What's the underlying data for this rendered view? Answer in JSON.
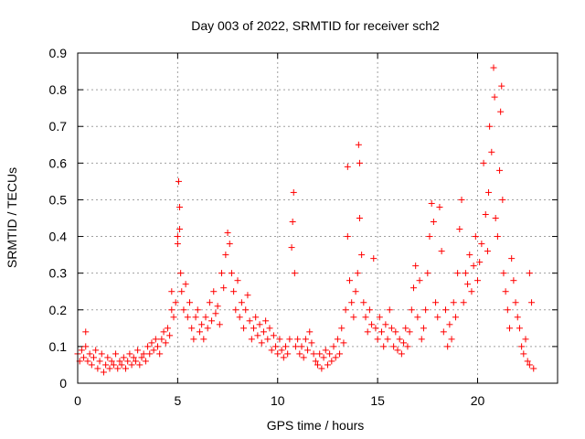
{
  "chart_data": {
    "type": "scatter",
    "title": "Day 003 of 2022, SRMTID for receiver sch2",
    "xlabel": "GPS time / hours",
    "ylabel": "SRMTID / TECUs",
    "xlim": [
      0,
      24
    ],
    "ylim": [
      0,
      0.9
    ],
    "xticks": [
      0,
      5,
      10,
      15,
      20
    ],
    "yticks": [
      0,
      0.1,
      0.2,
      0.3,
      0.4,
      0.5,
      0.6,
      0.7,
      0.8,
      0.9
    ],
    "xtick_labels": [
      "0",
      "5",
      "10",
      "15",
      "20"
    ],
    "ytick_labels": [
      "0",
      "0.1",
      "0.2",
      "0.3",
      "0.4",
      "0.5",
      "0.6",
      "0.7",
      "0.8",
      "0.9"
    ],
    "grid": true,
    "marker": "plus",
    "color": "#ff0000",
    "series": [
      {
        "name": "sch2",
        "points": [
          [
            0.0,
            0.08
          ],
          [
            0.1,
            0.06
          ],
          [
            0.2,
            0.09
          ],
          [
            0.3,
            0.07
          ],
          [
            0.4,
            0.1
          ],
          [
            0.4,
            0.14
          ],
          [
            0.5,
            0.06
          ],
          [
            0.6,
            0.08
          ],
          [
            0.7,
            0.05
          ],
          [
            0.8,
            0.07
          ],
          [
            0.9,
            0.09
          ],
          [
            1.0,
            0.04
          ],
          [
            1.1,
            0.06
          ],
          [
            1.2,
            0.08
          ],
          [
            1.3,
            0.03
          ],
          [
            1.4,
            0.05
          ],
          [
            1.5,
            0.07
          ],
          [
            1.6,
            0.04
          ],
          [
            1.7,
            0.06
          ],
          [
            1.8,
            0.05
          ],
          [
            1.9,
            0.08
          ],
          [
            2.0,
            0.04
          ],
          [
            2.1,
            0.06
          ],
          [
            2.2,
            0.05
          ],
          [
            2.3,
            0.07
          ],
          [
            2.4,
            0.04
          ],
          [
            2.5,
            0.06
          ],
          [
            2.6,
            0.08
          ],
          [
            2.7,
            0.05
          ],
          [
            2.8,
            0.07
          ],
          [
            2.9,
            0.06
          ],
          [
            3.0,
            0.09
          ],
          [
            3.1,
            0.05
          ],
          [
            3.2,
            0.07
          ],
          [
            3.3,
            0.08
          ],
          [
            3.4,
            0.06
          ],
          [
            3.5,
            0.1
          ],
          [
            3.6,
            0.08
          ],
          [
            3.7,
            0.11
          ],
          [
            3.8,
            0.09
          ],
          [
            3.9,
            0.12
          ],
          [
            4.0,
            0.1
          ],
          [
            4.1,
            0.08
          ],
          [
            4.2,
            0.12
          ],
          [
            4.3,
            0.14
          ],
          [
            4.4,
            0.11
          ],
          [
            4.5,
            0.15
          ],
          [
            4.6,
            0.13
          ],
          [
            4.7,
            0.2
          ],
          [
            4.7,
            0.25
          ],
          [
            4.8,
            0.18
          ],
          [
            4.9,
            0.22
          ],
          [
            5.0,
            0.4
          ],
          [
            5.0,
            0.38
          ],
          [
            5.05,
            0.55
          ],
          [
            5.1,
            0.48
          ],
          [
            5.1,
            0.42
          ],
          [
            5.15,
            0.3
          ],
          [
            5.2,
            0.25
          ],
          [
            5.3,
            0.2
          ],
          [
            5.4,
            0.27
          ],
          [
            5.5,
            0.18
          ],
          [
            5.6,
            0.22
          ],
          [
            5.7,
            0.15
          ],
          [
            5.8,
            0.12
          ],
          [
            5.9,
            0.18
          ],
          [
            6.0,
            0.2
          ],
          [
            6.1,
            0.14
          ],
          [
            6.2,
            0.16
          ],
          [
            6.3,
            0.12
          ],
          [
            6.4,
            0.18
          ],
          [
            6.5,
            0.15
          ],
          [
            6.6,
            0.22
          ],
          [
            6.7,
            0.17
          ],
          [
            6.8,
            0.25
          ],
          [
            6.9,
            0.19
          ],
          [
            7.0,
            0.21
          ],
          [
            7.1,
            0.16
          ],
          [
            7.2,
            0.3
          ],
          [
            7.3,
            0.26
          ],
          [
            7.4,
            0.35
          ],
          [
            7.5,
            0.41
          ],
          [
            7.6,
            0.38
          ],
          [
            7.7,
            0.3
          ],
          [
            7.8,
            0.25
          ],
          [
            7.9,
            0.2
          ],
          [
            8.0,
            0.28
          ],
          [
            8.1,
            0.18
          ],
          [
            8.2,
            0.22
          ],
          [
            8.3,
            0.15
          ],
          [
            8.4,
            0.2
          ],
          [
            8.5,
            0.24
          ],
          [
            8.6,
            0.17
          ],
          [
            8.7,
            0.12
          ],
          [
            8.8,
            0.15
          ],
          [
            8.9,
            0.18
          ],
          [
            9.0,
            0.13
          ],
          [
            9.1,
            0.16
          ],
          [
            9.2,
            0.11
          ],
          [
            9.3,
            0.14
          ],
          [
            9.4,
            0.17
          ],
          [
            9.5,
            0.12
          ],
          [
            9.6,
            0.15
          ],
          [
            9.7,
            0.09
          ],
          [
            9.8,
            0.13
          ],
          [
            9.9,
            0.1
          ],
          [
            10.0,
            0.08
          ],
          [
            10.1,
            0.12
          ],
          [
            10.2,
            0.09
          ],
          [
            10.3,
            0.07
          ],
          [
            10.4,
            0.1
          ],
          [
            10.5,
            0.08
          ],
          [
            10.6,
            0.12
          ],
          [
            10.7,
            0.37
          ],
          [
            10.75,
            0.44
          ],
          [
            10.8,
            0.52
          ],
          [
            10.85,
            0.3
          ],
          [
            10.9,
            0.1
          ],
          [
            11.0,
            0.12
          ],
          [
            11.1,
            0.08
          ],
          [
            11.2,
            0.1
          ],
          [
            11.3,
            0.07
          ],
          [
            11.4,
            0.12
          ],
          [
            11.5,
            0.09
          ],
          [
            11.6,
            0.14
          ],
          [
            11.7,
            0.11
          ],
          [
            11.8,
            0.08
          ],
          [
            11.9,
            0.06
          ],
          [
            12.0,
            0.05
          ],
          [
            12.1,
            0.08
          ],
          [
            12.2,
            0.04
          ],
          [
            12.3,
            0.07
          ],
          [
            12.4,
            0.09
          ],
          [
            12.5,
            0.05
          ],
          [
            12.6,
            0.08
          ],
          [
            12.7,
            0.06
          ],
          [
            12.8,
            0.1
          ],
          [
            12.9,
            0.07
          ],
          [
            13.0,
            0.12
          ],
          [
            13.1,
            0.08
          ],
          [
            13.2,
            0.15
          ],
          [
            13.3,
            0.11
          ],
          [
            13.4,
            0.2
          ],
          [
            13.5,
            0.59
          ],
          [
            13.5,
            0.4
          ],
          [
            13.6,
            0.28
          ],
          [
            13.7,
            0.22
          ],
          [
            13.8,
            0.18
          ],
          [
            13.9,
            0.25
          ],
          [
            14.0,
            0.3
          ],
          [
            14.05,
            0.65
          ],
          [
            14.1,
            0.6
          ],
          [
            14.1,
            0.45
          ],
          [
            14.2,
            0.35
          ],
          [
            14.3,
            0.22
          ],
          [
            14.4,
            0.18
          ],
          [
            14.5,
            0.14
          ],
          [
            14.6,
            0.2
          ],
          [
            14.7,
            0.16
          ],
          [
            14.8,
            0.34
          ],
          [
            14.9,
            0.15
          ],
          [
            15.0,
            0.12
          ],
          [
            15.1,
            0.18
          ],
          [
            15.2,
            0.14
          ],
          [
            15.3,
            0.1
          ],
          [
            15.4,
            0.16
          ],
          [
            15.5,
            0.12
          ],
          [
            15.6,
            0.2
          ],
          [
            15.7,
            0.15
          ],
          [
            15.8,
            0.1
          ],
          [
            15.9,
            0.14
          ],
          [
            16.0,
            0.09
          ],
          [
            16.1,
            0.12
          ],
          [
            16.2,
            0.08
          ],
          [
            16.3,
            0.11
          ],
          [
            16.4,
            0.15
          ],
          [
            16.5,
            0.1
          ],
          [
            16.6,
            0.14
          ],
          [
            16.7,
            0.2
          ],
          [
            16.8,
            0.26
          ],
          [
            16.9,
            0.32
          ],
          [
            17.0,
            0.18
          ],
          [
            17.1,
            0.28
          ],
          [
            17.2,
            0.12
          ],
          [
            17.3,
            0.15
          ],
          [
            17.4,
            0.2
          ],
          [
            17.5,
            0.3
          ],
          [
            17.6,
            0.4
          ],
          [
            17.7,
            0.49
          ],
          [
            17.8,
            0.44
          ],
          [
            17.9,
            0.22
          ],
          [
            18.0,
            0.18
          ],
          [
            18.1,
            0.48
          ],
          [
            18.2,
            0.36
          ],
          [
            18.3,
            0.14
          ],
          [
            18.4,
            0.2
          ],
          [
            18.5,
            0.1
          ],
          [
            18.6,
            0.16
          ],
          [
            18.7,
            0.12
          ],
          [
            18.8,
            0.22
          ],
          [
            18.9,
            0.18
          ],
          [
            19.0,
            0.3
          ],
          [
            19.1,
            0.42
          ],
          [
            19.2,
            0.5
          ],
          [
            19.3,
            0.22
          ],
          [
            19.4,
            0.3
          ],
          [
            19.5,
            0.27
          ],
          [
            19.6,
            0.35
          ],
          [
            19.7,
            0.25
          ],
          [
            19.8,
            0.32
          ],
          [
            19.9,
            0.4
          ],
          [
            20.0,
            0.28
          ],
          [
            20.1,
            0.33
          ],
          [
            20.2,
            0.38
          ],
          [
            20.3,
            0.6
          ],
          [
            20.4,
            0.46
          ],
          [
            20.5,
            0.36
          ],
          [
            20.55,
            0.52
          ],
          [
            20.6,
            0.7
          ],
          [
            20.7,
            0.63
          ],
          [
            20.8,
            0.86
          ],
          [
            20.85,
            0.78
          ],
          [
            20.9,
            0.45
          ],
          [
            21.0,
            0.4
          ],
          [
            21.1,
            0.58
          ],
          [
            21.15,
            0.74
          ],
          [
            21.2,
            0.81
          ],
          [
            21.25,
            0.5
          ],
          [
            21.3,
            0.3
          ],
          [
            21.4,
            0.25
          ],
          [
            21.5,
            0.2
          ],
          [
            21.6,
            0.15
          ],
          [
            21.7,
            0.34
          ],
          [
            21.8,
            0.28
          ],
          [
            21.9,
            0.22
          ],
          [
            22.0,
            0.18
          ],
          [
            22.1,
            0.15
          ],
          [
            22.2,
            0.1
          ],
          [
            22.3,
            0.08
          ],
          [
            22.4,
            0.12
          ],
          [
            22.5,
            0.06
          ],
          [
            22.6,
            0.3
          ],
          [
            22.6,
            0.05
          ],
          [
            22.7,
            0.22
          ],
          [
            22.8,
            0.04
          ]
        ]
      }
    ]
  }
}
